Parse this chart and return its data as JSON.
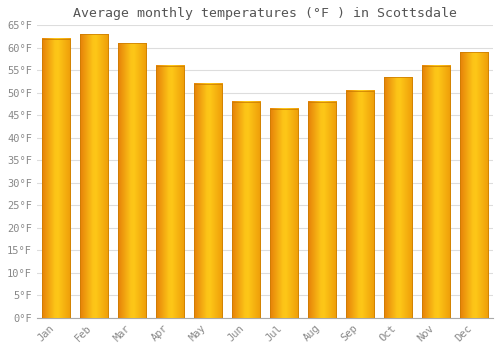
{
  "title": "Average monthly temperatures (°F ) in Scottsdale",
  "months": [
    "Jan",
    "Feb",
    "Mar",
    "Apr",
    "May",
    "Jun",
    "Jul",
    "Aug",
    "Sep",
    "Oct",
    "Nov",
    "Dec"
  ],
  "values": [
    62,
    63,
    61,
    56,
    52,
    48,
    46.5,
    48,
    50.5,
    53.5,
    56,
    59
  ],
  "bar_color_left": "#E8870A",
  "bar_color_mid": "#FFCC44",
  "bar_color_right": "#F0A020",
  "background_color": "#FFFFFF",
  "grid_color": "#DDDDDD",
  "ylim": [
    0,
    65
  ],
  "ytick_step": 5,
  "title_fontsize": 9.5,
  "tick_fontsize": 7.5,
  "tick_color": "#888888",
  "font_family": "monospace"
}
